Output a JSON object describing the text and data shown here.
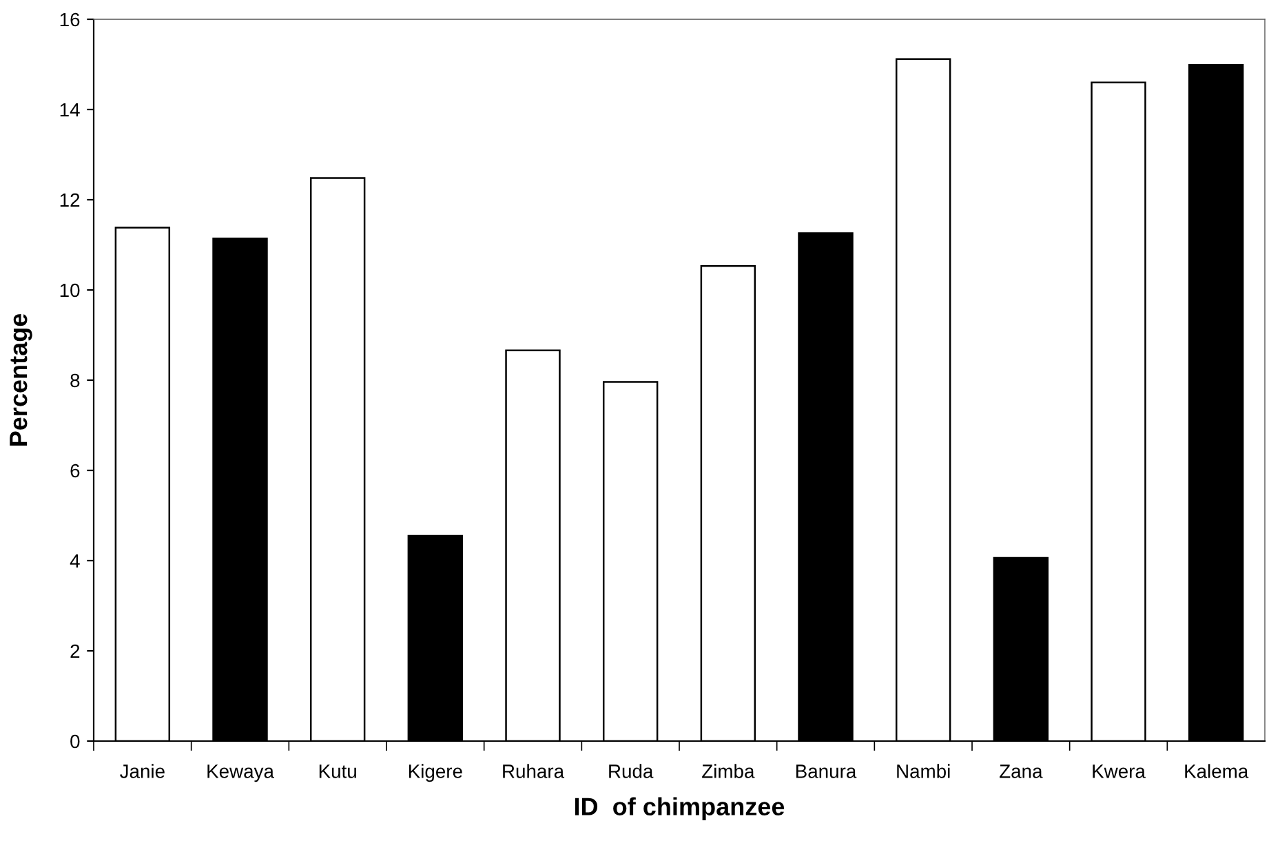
{
  "chart_data": {
    "type": "bar",
    "xlabel": "ID  of chimpanzee",
    "ylabel": "Percentage",
    "categories": [
      "Janie",
      "Kewaya",
      "Kutu",
      "Kigere",
      "Ruhara",
      "Ruda",
      "Zimba",
      "Banura",
      "Nambi",
      "Zana",
      "Kwera",
      "Kalema"
    ],
    "values": [
      11.38,
      11.14,
      12.48,
      4.55,
      8.66,
      7.96,
      10.53,
      11.26,
      15.12,
      4.06,
      14.6,
      14.99
    ],
    "colors": [
      "#ffffff",
      "#000000",
      "#ffffff",
      "#000000",
      "#ffffff",
      "#ffffff",
      "#ffffff",
      "#000000",
      "#ffffff",
      "#000000",
      "#ffffff",
      "#000000"
    ],
    "ylim": [
      0,
      16
    ],
    "yticks": [
      0,
      2,
      4,
      6,
      8,
      10,
      12,
      14,
      16
    ],
    "grid": false,
    "legend": false
  }
}
